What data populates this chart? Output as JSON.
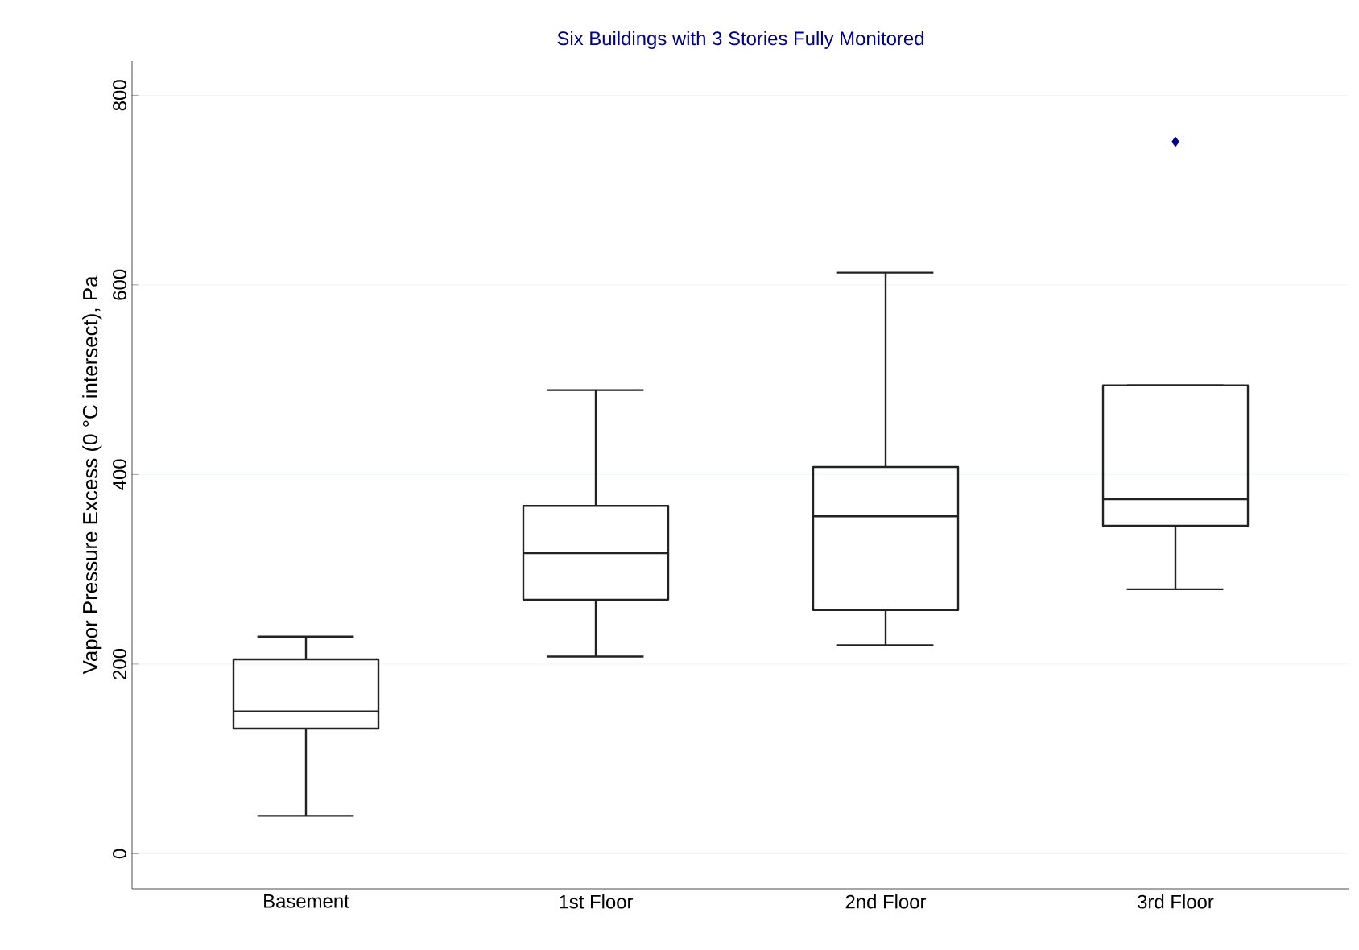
{
  "chart_data": {
    "type": "box",
    "title": "Six Buildings with 3 Stories Fully Monitored",
    "ylabel": "Vapor Pressure Excess (0 °C intersect), Pa",
    "categories": [
      "Basement",
      "1st Floor",
      "2nd Floor",
      "3rd Floor"
    ],
    "boxes": [
      {
        "low": 40,
        "q1": 132,
        "median": 150,
        "q3": 205,
        "high": 229
      },
      {
        "low": 208,
        "q1": 268,
        "median": 317,
        "q3": 367,
        "high": 489
      },
      {
        "low": 220,
        "q1": 257,
        "median": 356,
        "q3": 408,
        "high": 613
      },
      {
        "low": 279,
        "q1": 346,
        "median": 374,
        "q3": 494,
        "high": 494,
        "outliers": [
          751
        ]
      }
    ],
    "color": "#222222",
    "ylim": [
      -37,
      836
    ],
    "yticks": [
      0,
      200,
      400,
      600,
      800
    ],
    "grid": "y"
  }
}
